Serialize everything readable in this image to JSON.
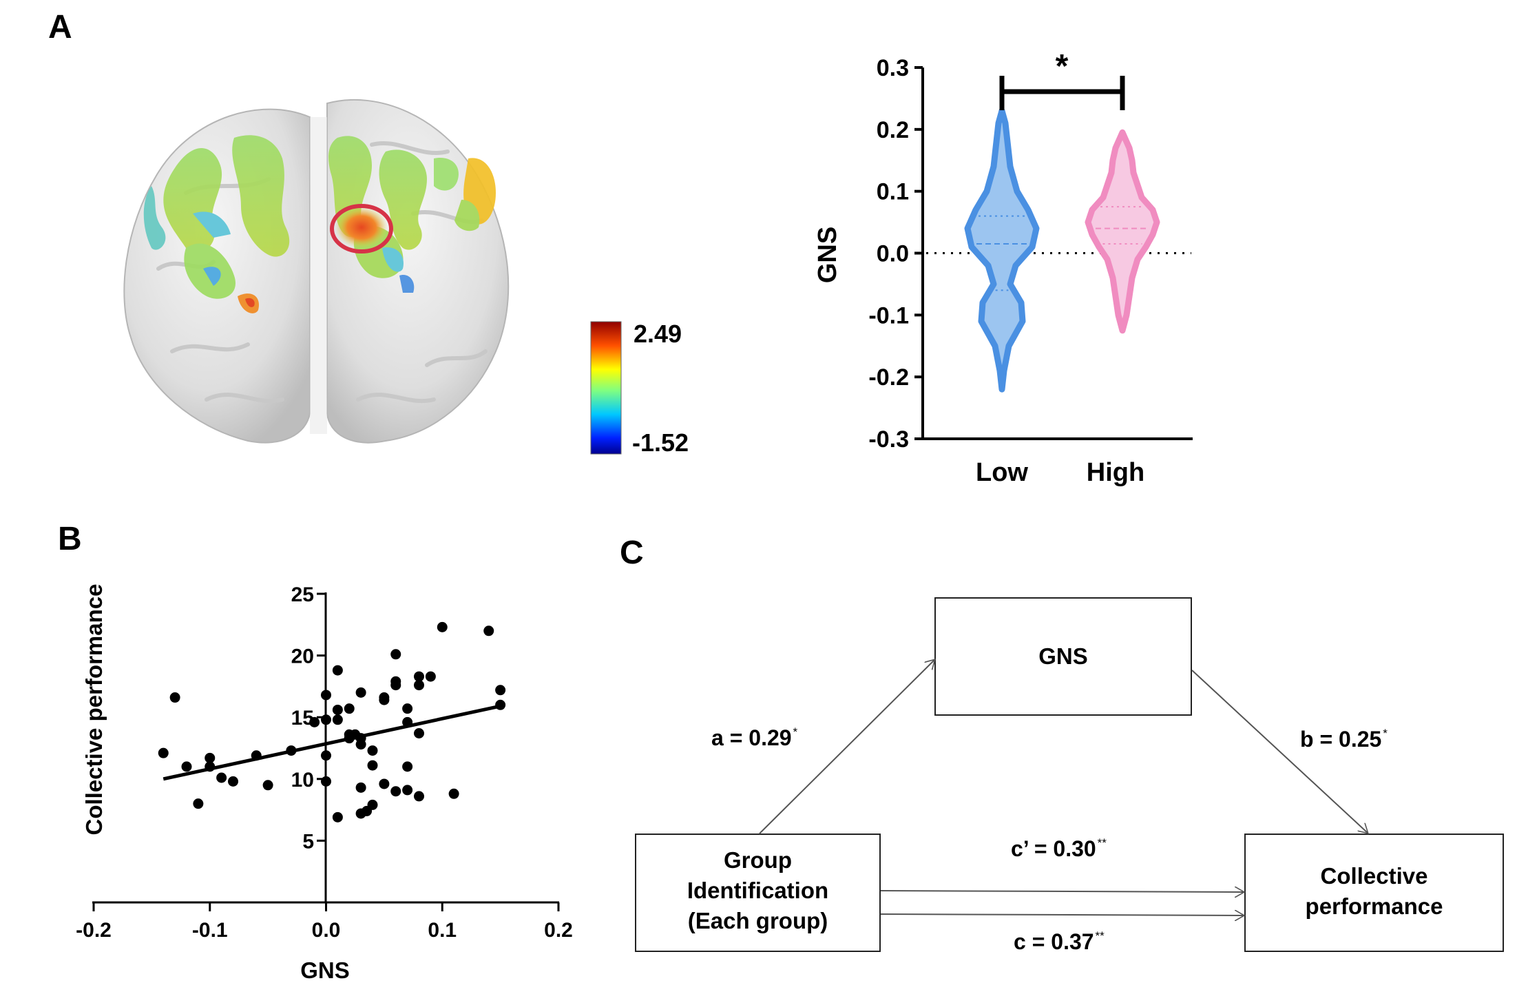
{
  "panels": {
    "a": "A",
    "b": "B",
    "c": "C"
  },
  "colorbar": {
    "max_label": "2.49",
    "min_label": "-1.52",
    "max": 2.49,
    "min": -1.52
  },
  "colors": {
    "low": "#4a90e2",
    "high": "#f08cc0",
    "highlight_circle": "#d63347"
  },
  "chart_data": [
    {
      "type": "violin",
      "ylabel": "GNS",
      "ylim": [
        -0.3,
        0.3
      ],
      "yticks": [
        "0.3",
        "0.2",
        "0.1",
        "0.0",
        "-0.1",
        "-0.2",
        "-0.3"
      ],
      "categories": [
        "Low",
        "High"
      ],
      "series": [
        {
          "category": "Low",
          "min": -0.22,
          "max": 0.23,
          "median": 0.015,
          "q1": -0.06,
          "q3": 0.06
        },
        {
          "category": "High",
          "min": -0.125,
          "max": 0.195,
          "median": 0.04,
          "q1": 0.015,
          "q3": 0.075
        }
      ],
      "reference_line": 0.0,
      "significance": "*"
    },
    {
      "type": "scatter",
      "xlabel": "GNS",
      "ylabel": "Collective performance",
      "xlim": [
        -0.2,
        0.2
      ],
      "ylim": [
        0,
        25
      ],
      "xticks": [
        "-0.2",
        "-0.1",
        "0.0",
        "0.1",
        "0.2"
      ],
      "yticks": [
        "25",
        "20",
        "15",
        "10",
        "5"
      ],
      "points": [
        [
          -0.14,
          12.1
        ],
        [
          -0.13,
          16.6
        ],
        [
          -0.12,
          11.0
        ],
        [
          -0.11,
          8.0
        ],
        [
          -0.1,
          11.7
        ],
        [
          -0.1,
          11.0
        ],
        [
          -0.09,
          10.1
        ],
        [
          -0.08,
          9.8
        ],
        [
          -0.06,
          11.9
        ],
        [
          -0.05,
          9.5
        ],
        [
          -0.03,
          12.3
        ],
        [
          -0.01,
          14.6
        ],
        [
          0.0,
          16.8
        ],
        [
          0.0,
          14.8
        ],
        [
          0.0,
          11.9
        ],
        [
          0.0,
          9.8
        ],
        [
          0.01,
          18.8
        ],
        [
          0.01,
          15.6
        ],
        [
          0.01,
          14.8
        ],
        [
          0.01,
          6.9
        ],
        [
          0.02,
          15.7
        ],
        [
          0.02,
          13.6
        ],
        [
          0.02,
          13.3
        ],
        [
          0.025,
          13.6
        ],
        [
          0.03,
          17.0
        ],
        [
          0.03,
          13.3
        ],
        [
          0.03,
          12.8
        ],
        [
          0.03,
          9.3
        ],
        [
          0.03,
          7.2
        ],
        [
          0.035,
          7.4
        ],
        [
          0.04,
          12.3
        ],
        [
          0.04,
          11.1
        ],
        [
          0.04,
          7.9
        ],
        [
          0.05,
          16.6
        ],
        [
          0.05,
          16.4
        ],
        [
          0.05,
          9.6
        ],
        [
          0.06,
          20.1
        ],
        [
          0.06,
          17.9
        ],
        [
          0.06,
          17.6
        ],
        [
          0.06,
          9.0
        ],
        [
          0.07,
          15.7
        ],
        [
          0.07,
          14.6
        ],
        [
          0.07,
          11.0
        ],
        [
          0.07,
          9.1
        ],
        [
          0.08,
          18.3
        ],
        [
          0.08,
          17.6
        ],
        [
          0.08,
          13.7
        ],
        [
          0.08,
          8.6
        ],
        [
          0.09,
          18.3
        ],
        [
          0.1,
          22.3
        ],
        [
          0.11,
          8.8
        ],
        [
          0.14,
          22.0
        ],
        [
          0.15,
          17.2
        ],
        [
          0.15,
          16.0
        ]
      ],
      "fit_line": [
        [
          -0.14,
          10.0
        ],
        [
          0.15,
          15.9
        ]
      ]
    }
  ],
  "diagram": {
    "mediator": "GNS",
    "predictor_lines": [
      "Group",
      "Identification",
      "(Each group)"
    ],
    "outcome_lines": [
      "Collective",
      "performance"
    ],
    "path_a": {
      "text": "a = 0.29",
      "sig": "*"
    },
    "path_b": {
      "text": "b = 0.25",
      "sig": "*"
    },
    "path_c_prime": {
      "text": "c’ = 0.30",
      "sig": "**"
    },
    "path_c": {
      "text": "c = 0.37",
      "sig": "**"
    }
  }
}
